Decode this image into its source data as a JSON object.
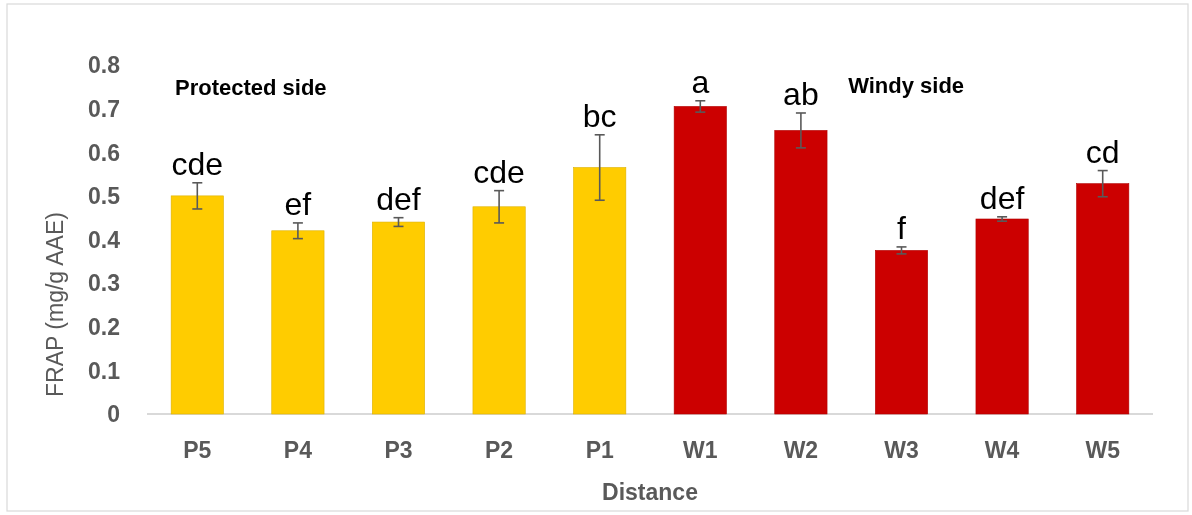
{
  "chart_data": {
    "type": "bar",
    "xlabel": "Distance",
    "ylabel": "FRAP (mg/g AAE)",
    "categories": [
      "P5",
      "P4",
      "P3",
      "P2",
      "P1",
      "W1",
      "W2",
      "W3",
      "W4",
      "W5"
    ],
    "values": [
      0.5,
      0.42,
      0.44,
      0.475,
      0.565,
      0.705,
      0.65,
      0.375,
      0.447,
      0.528
    ],
    "colors": [
      "#ffcc00",
      "#ffcc00",
      "#ffcc00",
      "#ffcc00",
      "#ffcc00",
      "#cc0000",
      "#cc0000",
      "#cc0000",
      "#cc0000",
      "#cc0000"
    ],
    "errors": [
      0.03,
      0.018,
      0.01,
      0.037,
      0.075,
      0.013,
      0.04,
      0.008,
      0.005,
      0.03
    ],
    "value_labels": [
      "cde",
      "ef",
      "def",
      "cde",
      "bc",
      "a",
      "ab",
      "f",
      "def",
      "cd"
    ],
    "ylim": [
      0,
      0.8
    ],
    "yticks": [
      0,
      0.1,
      0.2,
      0.3,
      0.4,
      0.5,
      0.6,
      0.7,
      0.8
    ],
    "annotations": [
      "Protected side",
      "Windy side"
    ]
  }
}
